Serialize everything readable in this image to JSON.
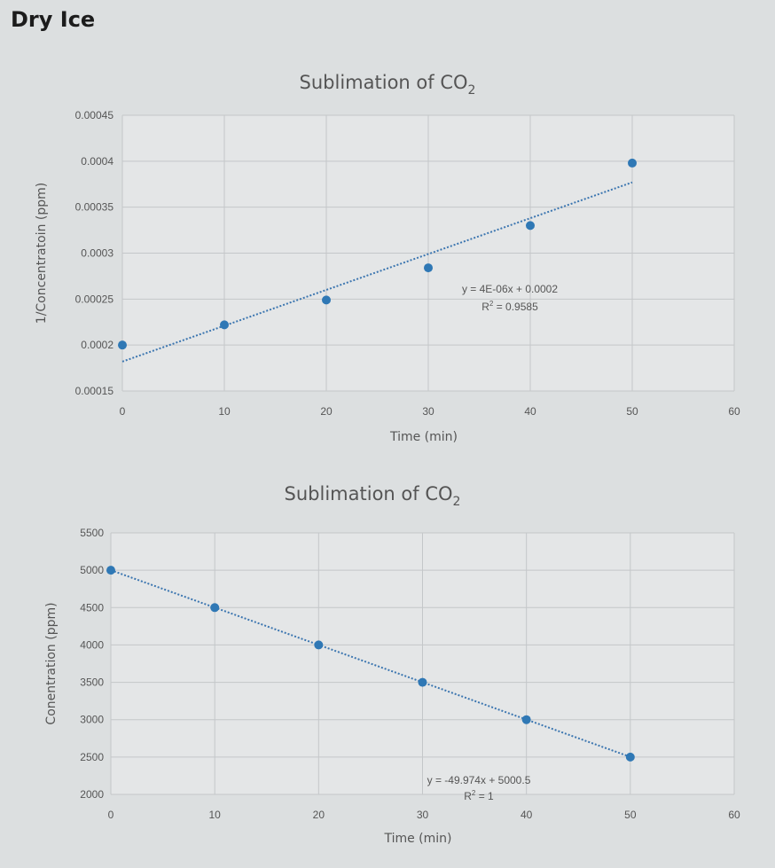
{
  "page_title": "Dry Ice",
  "colors": {
    "marker": "#2f78b5",
    "trendline": "#3c76b0",
    "grid": "#c4c7c9",
    "text": "#555555"
  },
  "chart_data": [
    {
      "type": "scatter",
      "title": "Sublimation of CO",
      "title_subscript": "2",
      "xlabel": "Time (min)",
      "ylabel": "1/Concentratoin (ppm)",
      "xlim": [
        0,
        60
      ],
      "ylim": [
        0.00015,
        0.00045
      ],
      "x_ticks": [
        "0",
        "10",
        "20",
        "30",
        "40",
        "50",
        "60"
      ],
      "y_ticks": [
        "0.00015",
        "0.0002",
        "0.00025",
        "0.0003",
        "0.00035",
        "0.0004",
        "0.00045"
      ],
      "grid": true,
      "series": [
        {
          "x": [
            0,
            10,
            20,
            30,
            40,
            50
          ],
          "y": [
            0.0002,
            0.000222,
            0.000249,
            0.000284,
            0.00033,
            0.000398
          ]
        }
      ],
      "trendline": {
        "slope": 3.9e-06,
        "intercept": 0.000182,
        "x_range": [
          0,
          50
        ],
        "equation": "y = 4E-06x + 0.0002",
        "r2_label": "R",
        "r2_value": " = 0.9585"
      }
    },
    {
      "type": "scatter",
      "title": "Sublimation of CO",
      "title_subscript": "2",
      "xlabel": "Time (min)",
      "ylabel": "Conentration (ppm)",
      "xlim": [
        0,
        60
      ],
      "ylim": [
        2000,
        5500
      ],
      "x_ticks": [
        "0",
        "10",
        "20",
        "30",
        "40",
        "50",
        "60"
      ],
      "y_ticks": [
        "2000",
        "2500",
        "3000",
        "3500",
        "4000",
        "4500",
        "5000",
        "5500"
      ],
      "grid": true,
      "series": [
        {
          "x": [
            0,
            10,
            20,
            30,
            40,
            50
          ],
          "y": [
            5000,
            4500,
            4000,
            3500,
            3000,
            2500
          ]
        }
      ],
      "trendline": {
        "slope": -49.974,
        "intercept": 5000.5,
        "x_range": [
          0,
          50
        ],
        "equation": "y = -49.974x + 5000.5",
        "r2_label": "R",
        "r2_value": " = 1"
      }
    }
  ]
}
